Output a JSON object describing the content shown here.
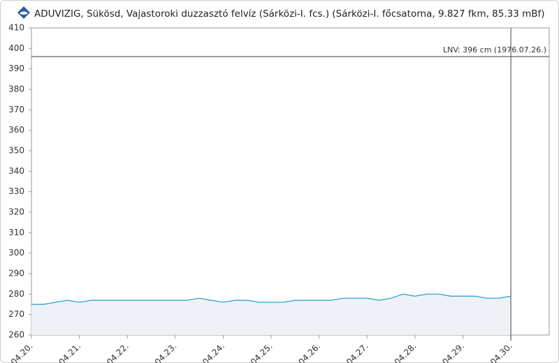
{
  "chart_data": {
    "type": "line",
    "title": "ADUVIZIG, Sükösd, Vajastoroki duzzasztó felvíz (Sárközi-I. fcs.) (Sárközi-I. főcsatorna, 9.827 fkm, 85.33 mBf)",
    "x": [
      20,
      20.25,
      20.5,
      20.75,
      21,
      21.25,
      21.5,
      21.75,
      22,
      22.25,
      22.5,
      22.75,
      23,
      23.25,
      23.5,
      23.75,
      24,
      24.25,
      24.5,
      24.75,
      25,
      25.25,
      25.5,
      25.75,
      26,
      26.25,
      26.5,
      26.75,
      27,
      27.25,
      27.5,
      27.75,
      28,
      28.25,
      28.5,
      28.75,
      29,
      29.25,
      29.5,
      29.75,
      30
    ],
    "series": [
      {
        "color": "#1a9fd4",
        "values": [
          275,
          275,
          276,
          277,
          276,
          277,
          277,
          277,
          277,
          277,
          277,
          277,
          277,
          277,
          278,
          277,
          276,
          277,
          277,
          276,
          276,
          276,
          277,
          277,
          277,
          277,
          278,
          278,
          278,
          277,
          278,
          280,
          279,
          280,
          280,
          279,
          279,
          279,
          278,
          278,
          279
        ]
      }
    ],
    "area_color": "#eef1f6",
    "xlim": [
      20,
      30.8
    ],
    "xticks": [
      {
        "value": 20,
        "label": "04.20."
      },
      {
        "value": 21,
        "label": "04.21."
      },
      {
        "value": 22,
        "label": "04.22."
      },
      {
        "value": 23,
        "label": "04.23."
      },
      {
        "value": 24,
        "label": "04.24."
      },
      {
        "value": 25,
        "label": "04.25."
      },
      {
        "value": 26,
        "label": "04.26."
      },
      {
        "value": 27,
        "label": "04.27."
      },
      {
        "value": 28,
        "label": "04.28."
      },
      {
        "value": 29,
        "label": "04.29."
      },
      {
        "value": 30,
        "label": "04.30."
      }
    ],
    "ylim": [
      260,
      410
    ],
    "yticks": [
      260,
      270,
      280,
      290,
      300,
      310,
      320,
      330,
      340,
      350,
      360,
      370,
      380,
      390,
      400,
      410
    ],
    "reference_line": {
      "value": 396,
      "label": "LNV: 396 cm (1976.07.26.)"
    }
  }
}
